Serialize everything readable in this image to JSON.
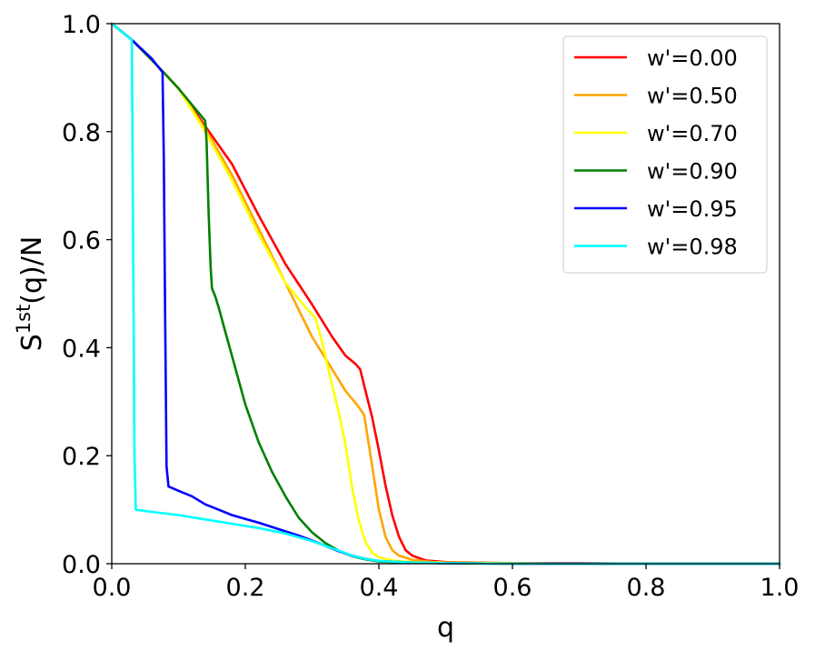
{
  "chart_data": {
    "type": "line",
    "title": "",
    "xlabel": "q",
    "ylabel_main": "S",
    "ylabel_sup": "1st",
    "ylabel_rest": "(q)/N",
    "xlim": [
      0.0,
      1.0
    ],
    "ylim": [
      0.0,
      1.0
    ],
    "xticks": [
      "0.0",
      "0.2",
      "0.4",
      "0.6",
      "0.8",
      "1.0"
    ],
    "yticks": [
      "0.0",
      "0.2",
      "0.4",
      "0.6",
      "0.8",
      "1.0"
    ],
    "grid": false,
    "legend_position": "top-right",
    "series": [
      {
        "name": "w'=0.00",
        "color": "#ff0000",
        "x": [
          0.0,
          0.03,
          0.07,
          0.1,
          0.14,
          0.18,
          0.22,
          0.26,
          0.3,
          0.33,
          0.35,
          0.365,
          0.372,
          0.38,
          0.39,
          0.4,
          0.41,
          0.42,
          0.43,
          0.44,
          0.45,
          0.47,
          0.5,
          0.55,
          0.6,
          0.7,
          0.8,
          0.9,
          1.0
        ],
        "y": [
          1.0,
          0.97,
          0.92,
          0.88,
          0.81,
          0.74,
          0.645,
          0.555,
          0.48,
          0.42,
          0.385,
          0.37,
          0.36,
          0.32,
          0.27,
          0.21,
          0.145,
          0.09,
          0.05,
          0.025,
          0.015,
          0.006,
          0.003,
          0.002,
          0.001,
          0.001,
          0.0,
          0.0,
          0.0
        ]
      },
      {
        "name": "w'=0.50",
        "color": "#ffa500",
        "x": [
          0.0,
          0.03,
          0.07,
          0.1,
          0.14,
          0.18,
          0.22,
          0.26,
          0.3,
          0.33,
          0.35,
          0.37,
          0.378,
          0.385,
          0.39,
          0.4,
          0.41,
          0.42,
          0.43,
          0.45,
          0.48,
          0.5,
          0.55,
          0.6,
          0.7,
          0.8,
          0.9,
          1.0
        ],
        "y": [
          1.0,
          0.97,
          0.92,
          0.88,
          0.805,
          0.72,
          0.62,
          0.52,
          0.42,
          0.36,
          0.32,
          0.29,
          0.275,
          0.22,
          0.18,
          0.1,
          0.05,
          0.025,
          0.015,
          0.007,
          0.003,
          0.002,
          0.001,
          0.001,
          0.0,
          0.0,
          0.0,
          0.0
        ]
      },
      {
        "name": "w'=0.70",
        "color": "#ffff00",
        "x": [
          0.0,
          0.03,
          0.07,
          0.1,
          0.14,
          0.18,
          0.22,
          0.26,
          0.29,
          0.305,
          0.315,
          0.33,
          0.34,
          0.35,
          0.36,
          0.37,
          0.38,
          0.39,
          0.4,
          0.42,
          0.45,
          0.5,
          0.6,
          0.7,
          0.8,
          0.9,
          1.0
        ],
        "y": [
          1.0,
          0.97,
          0.92,
          0.88,
          0.8,
          0.71,
          0.61,
          0.52,
          0.475,
          0.455,
          0.41,
          0.33,
          0.28,
          0.22,
          0.14,
          0.08,
          0.04,
          0.02,
          0.012,
          0.006,
          0.003,
          0.002,
          0.001,
          0.0,
          0.0,
          0.0,
          0.0
        ]
      },
      {
        "name": "w'=0.90",
        "color": "#008000",
        "x": [
          0.0,
          0.03,
          0.07,
          0.1,
          0.14,
          0.142,
          0.145,
          0.148,
          0.15,
          0.155,
          0.16,
          0.17,
          0.18,
          0.19,
          0.2,
          0.22,
          0.24,
          0.26,
          0.28,
          0.3,
          0.32,
          0.34,
          0.36,
          0.38,
          0.4,
          0.45,
          0.5,
          0.6,
          0.7,
          0.8,
          0.9,
          1.0
        ],
        "y": [
          1.0,
          0.97,
          0.92,
          0.88,
          0.82,
          0.78,
          0.65,
          0.55,
          0.51,
          0.495,
          0.475,
          0.43,
          0.385,
          0.34,
          0.295,
          0.225,
          0.17,
          0.125,
          0.085,
          0.058,
          0.038,
          0.024,
          0.014,
          0.008,
          0.004,
          0.002,
          0.001,
          0.0,
          0.0,
          0.0,
          0.0,
          0.0
        ]
      },
      {
        "name": "w'=0.95",
        "color": "#0000ff",
        "x": [
          0.0,
          0.03,
          0.06,
          0.076,
          0.078,
          0.08,
          0.082,
          0.085,
          0.1,
          0.12,
          0.14,
          0.16,
          0.18,
          0.2,
          0.22,
          0.24,
          0.26,
          0.28,
          0.3,
          0.32,
          0.34,
          0.36,
          0.38,
          0.4,
          0.45,
          0.5,
          0.6,
          0.7,
          0.8,
          0.9,
          1.0
        ],
        "y": [
          1.0,
          0.97,
          0.935,
          0.91,
          0.75,
          0.45,
          0.18,
          0.143,
          0.135,
          0.125,
          0.11,
          0.1,
          0.09,
          0.083,
          0.076,
          0.068,
          0.06,
          0.052,
          0.043,
          0.033,
          0.023,
          0.015,
          0.009,
          0.005,
          0.002,
          0.001,
          0.0,
          0.0,
          0.0,
          0.0,
          0.0
        ]
      },
      {
        "name": "w'=0.98",
        "color": "#00ffff",
        "x": [
          0.0,
          0.015,
          0.03,
          0.032,
          0.034,
          0.036,
          0.06,
          0.1,
          0.14,
          0.18,
          0.22,
          0.26,
          0.3,
          0.32,
          0.34,
          0.36,
          0.38,
          0.4,
          0.45,
          0.5,
          0.6,
          0.7,
          0.8,
          0.9,
          1.0
        ],
        "y": [
          1.0,
          0.985,
          0.97,
          0.6,
          0.2,
          0.1,
          0.096,
          0.09,
          0.082,
          0.074,
          0.066,
          0.056,
          0.042,
          0.033,
          0.024,
          0.015,
          0.009,
          0.005,
          0.002,
          0.001,
          0.0,
          0.0,
          0.0,
          0.0,
          0.0
        ]
      }
    ]
  }
}
